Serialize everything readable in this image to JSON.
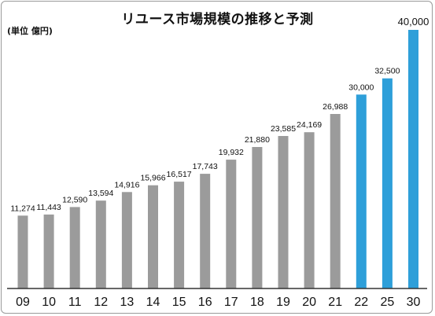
{
  "chart_data": {
    "type": "bar",
    "title": "リユース市場規模の推移と予測",
    "unit_label": "(単位 億円)",
    "categories": [
      "09",
      "10",
      "11",
      "12",
      "13",
      "14",
      "15",
      "16",
      "17",
      "18",
      "19",
      "20",
      "21",
      "22",
      "25",
      "30"
    ],
    "values": [
      11274,
      11443,
      12590,
      13594,
      14916,
      15966,
      16517,
      17743,
      19932,
      21880,
      23585,
      24169,
      26988,
      30000,
      32500,
      40000
    ],
    "value_labels": [
      "11,274",
      "11,443",
      "12,590",
      "13,594",
      "14,916",
      "15,966",
      "16,517",
      "17,743",
      "19,932",
      "21,880",
      "23,585",
      "24,169",
      "26,988",
      "30,000",
      "32,500",
      "40,000"
    ],
    "forecast_categories": [
      "22",
      "25",
      "30"
    ],
    "ylim": [
      0,
      40000
    ],
    "grid": false,
    "colors": {
      "actual": "#9b9b9b",
      "forecast": "#2e9fd9",
      "baseline": "#333333"
    }
  }
}
